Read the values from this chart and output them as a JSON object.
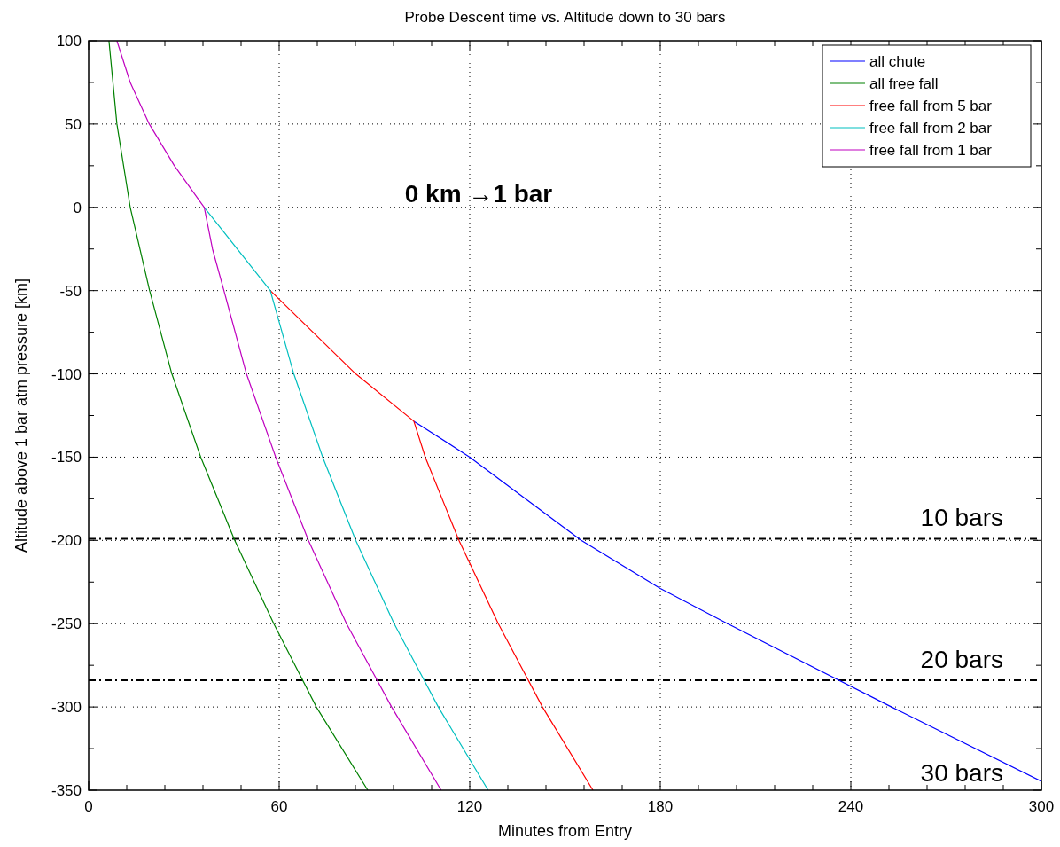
{
  "chart_data": {
    "type": "line",
    "title": "Probe Descent time vs. Altitude down to 30 bars",
    "xlabel": "Minutes from Entry",
    "ylabel": "Altitude above 1 bar atm pressure [km]",
    "xlim": [
      0,
      300
    ],
    "ylim": [
      -350,
      100
    ],
    "xticks": [
      0,
      {
        "value": 12,
        "label": null
      },
      {
        "value": 24,
        "label": null
      },
      {
        "value": 36,
        "label": null
      },
      {
        "value": 48,
        "label": null
      },
      60,
      {
        "value": 72,
        "label": null
      },
      {
        "value": 84,
        "label": null
      },
      {
        "value": 96,
        "label": null
      },
      {
        "value": 108,
        "label": null
      },
      120,
      {
        "value": 132,
        "label": null
      },
      {
        "value": 144,
        "label": null
      },
      {
        "value": 156,
        "label": null
      },
      {
        "value": 168,
        "label": null
      },
      180,
      {
        "value": 192,
        "label": null
      },
      {
        "value": 204,
        "label": null
      },
      {
        "value": 216,
        "label": null
      },
      {
        "value": 228,
        "label": null
      },
      240,
      {
        "value": 252,
        "label": null
      },
      {
        "value": 264,
        "label": null
      },
      {
        "value": 276,
        "label": null
      },
      {
        "value": 288,
        "label": null
      },
      300
    ],
    "yticks": [
      100,
      {
        "value": 75,
        "label": null
      },
      50,
      {
        "value": 25,
        "label": null
      },
      0,
      {
        "value": -25,
        "label": null
      },
      -50,
      {
        "value": -75,
        "label": null
      },
      -100,
      {
        "value": -125,
        "label": null
      },
      -150,
      {
        "value": -175,
        "label": null
      },
      -200,
      {
        "value": -225,
        "label": null
      },
      -250,
      {
        "value": -275,
        "label": null
      },
      -300,
      {
        "value": -325,
        "label": null
      },
      -350
    ],
    "grid": true,
    "legend": "top right",
    "line_style": "solid",
    "marker": "none",
    "series": [
      {
        "name": "all chute",
        "color": "#0000ff",
        "x": [
          102.4,
          120,
          155.1,
          180,
          201.2,
          252.8,
          300
        ],
        "values": [
          -128.4,
          -150,
          -200,
          -228.8,
          -250,
          -300,
          -344.6
        ]
      },
      {
        "name": "all free fall",
        "color": "#008000",
        "x": [
          6.4,
          8.9,
          13.1,
          19.2,
          26.2,
          35.3,
          46,
          58.3,
          71.7,
          87.9
        ],
        "values": [
          100,
          50,
          0,
          -50,
          -100,
          -150,
          -200,
          -250,
          -300,
          -350
        ]
      },
      {
        "name": "free fall from 5 bar",
        "color": "#ff0000",
        "x": [
          57.2,
          84.1,
          102.4,
          106,
          116.6,
          129,
          142.9,
          158.8
        ],
        "values": [
          -50,
          -100,
          -128.4,
          -150,
          -200,
          -250,
          -300,
          -350
        ]
      },
      {
        "name": "free fall from 2 bar",
        "color": "#00bfbf",
        "x": [
          36.4,
          57.2,
          64.6,
          73.7,
          84.1,
          96.2,
          110.1,
          125.8
        ],
        "values": [
          0,
          -50,
          -100,
          -150,
          -200,
          -250,
          -300,
          -350
        ]
      },
      {
        "name": "free fall from 1 bar",
        "color": "#bf00bf",
        "x": [
          8.9,
          13.1,
          19.1,
          27,
          36.4,
          39,
          42.6,
          49.7,
          58.9,
          69.2,
          81.2,
          95.4,
          111
        ],
        "values": [
          100,
          75,
          50,
          25,
          0,
          -25,
          -50,
          -100,
          -150,
          -200,
          -250,
          -300,
          -350
        ]
      }
    ],
    "ref_lines": [
      {
        "axis": "y",
        "value": -199,
        "label": "10 bars",
        "color": "#000000",
        "line_style": "dashdot"
      },
      {
        "axis": "y",
        "value": -284,
        "label": "20 bars",
        "color": "#000000",
        "line_style": "dashdot"
      }
    ],
    "annotations": [
      "0 km →1 bar",
      "30 bars"
    ]
  }
}
